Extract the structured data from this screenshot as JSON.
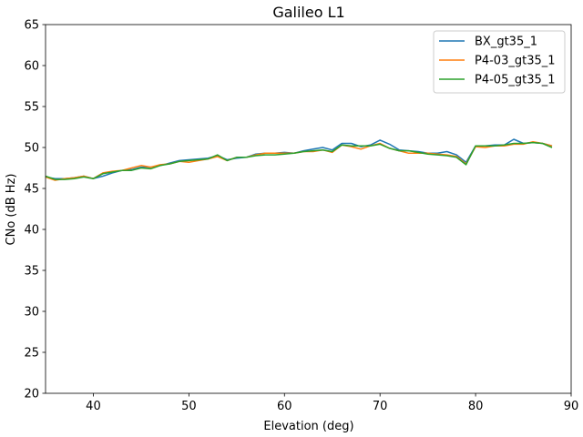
{
  "chart_data": {
    "type": "line",
    "title": "Galileo L1",
    "xlabel": "Elevation (deg)",
    "ylabel": "CNo (dB Hz)",
    "xlim": [
      35,
      90
    ],
    "ylim": [
      20,
      65
    ],
    "xticks": [
      40,
      50,
      60,
      70,
      80,
      90
    ],
    "yticks": [
      20,
      25,
      30,
      35,
      40,
      45,
      50,
      55,
      60,
      65
    ],
    "legend_position": "top-right",
    "grid": false,
    "x": [
      35,
      36,
      37,
      38,
      39,
      40,
      41,
      42,
      43,
      44,
      45,
      46,
      47,
      48,
      49,
      50,
      51,
      52,
      53,
      54,
      55,
      56,
      57,
      58,
      59,
      60,
      61,
      62,
      63,
      64,
      65,
      66,
      67,
      68,
      69,
      70,
      71,
      72,
      73,
      74,
      75,
      76,
      77,
      78,
      79,
      80,
      81,
      82,
      83,
      84,
      85,
      86,
      87,
      88
    ],
    "series": [
      {
        "name": "BX_gt35_1",
        "color": "#1f77b4",
        "values": [
          46.4,
          46.2,
          46.2,
          46.3,
          46.5,
          46.2,
          46.5,
          46.9,
          47.2,
          47.3,
          47.6,
          47.6,
          47.8,
          48.1,
          48.4,
          48.5,
          48.6,
          48.7,
          49.0,
          48.5,
          48.7,
          48.8,
          49.2,
          49.3,
          49.3,
          49.4,
          49.3,
          49.6,
          49.8,
          50.0,
          49.7,
          50.5,
          50.5,
          50.1,
          50.3,
          50.9,
          50.4,
          49.7,
          49.6,
          49.5,
          49.3,
          49.3,
          49.5,
          49.1,
          48.2,
          50.2,
          50.2,
          50.3,
          50.3,
          51.0,
          50.5,
          50.6,
          50.5,
          50.2
        ]
      },
      {
        "name": "P4-03_gt35_1",
        "color": "#ff7f0e",
        "values": [
          46.4,
          46.0,
          46.2,
          46.3,
          46.5,
          46.2,
          46.9,
          47.1,
          47.2,
          47.5,
          47.8,
          47.6,
          47.9,
          48.0,
          48.3,
          48.2,
          48.4,
          48.6,
          48.9,
          48.4,
          48.8,
          48.8,
          49.1,
          49.3,
          49.3,
          49.3,
          49.3,
          49.5,
          49.5,
          49.7,
          49.4,
          50.3,
          50.1,
          49.8,
          50.2,
          50.5,
          49.9,
          49.6,
          49.3,
          49.3,
          49.3,
          49.2,
          49.1,
          48.9,
          48.0,
          50.1,
          50.0,
          50.2,
          50.2,
          50.4,
          50.4,
          50.7,
          50.5,
          50.2
        ]
      },
      {
        "name": "P4-05_gt35_1",
        "color": "#2ca02c",
        "values": [
          46.5,
          46.1,
          46.1,
          46.2,
          46.4,
          46.2,
          46.8,
          47.0,
          47.2,
          47.2,
          47.5,
          47.4,
          47.8,
          48.0,
          48.3,
          48.4,
          48.5,
          48.6,
          49.1,
          48.4,
          48.8,
          48.8,
          49.0,
          49.1,
          49.1,
          49.2,
          49.3,
          49.5,
          49.6,
          49.7,
          49.5,
          50.3,
          50.2,
          50.2,
          50.2,
          50.4,
          49.9,
          49.6,
          49.6,
          49.4,
          49.2,
          49.1,
          49.0,
          48.8,
          47.9,
          50.2,
          50.2,
          50.2,
          50.3,
          50.5,
          50.5,
          50.6,
          50.5,
          50.0
        ]
      }
    ]
  }
}
